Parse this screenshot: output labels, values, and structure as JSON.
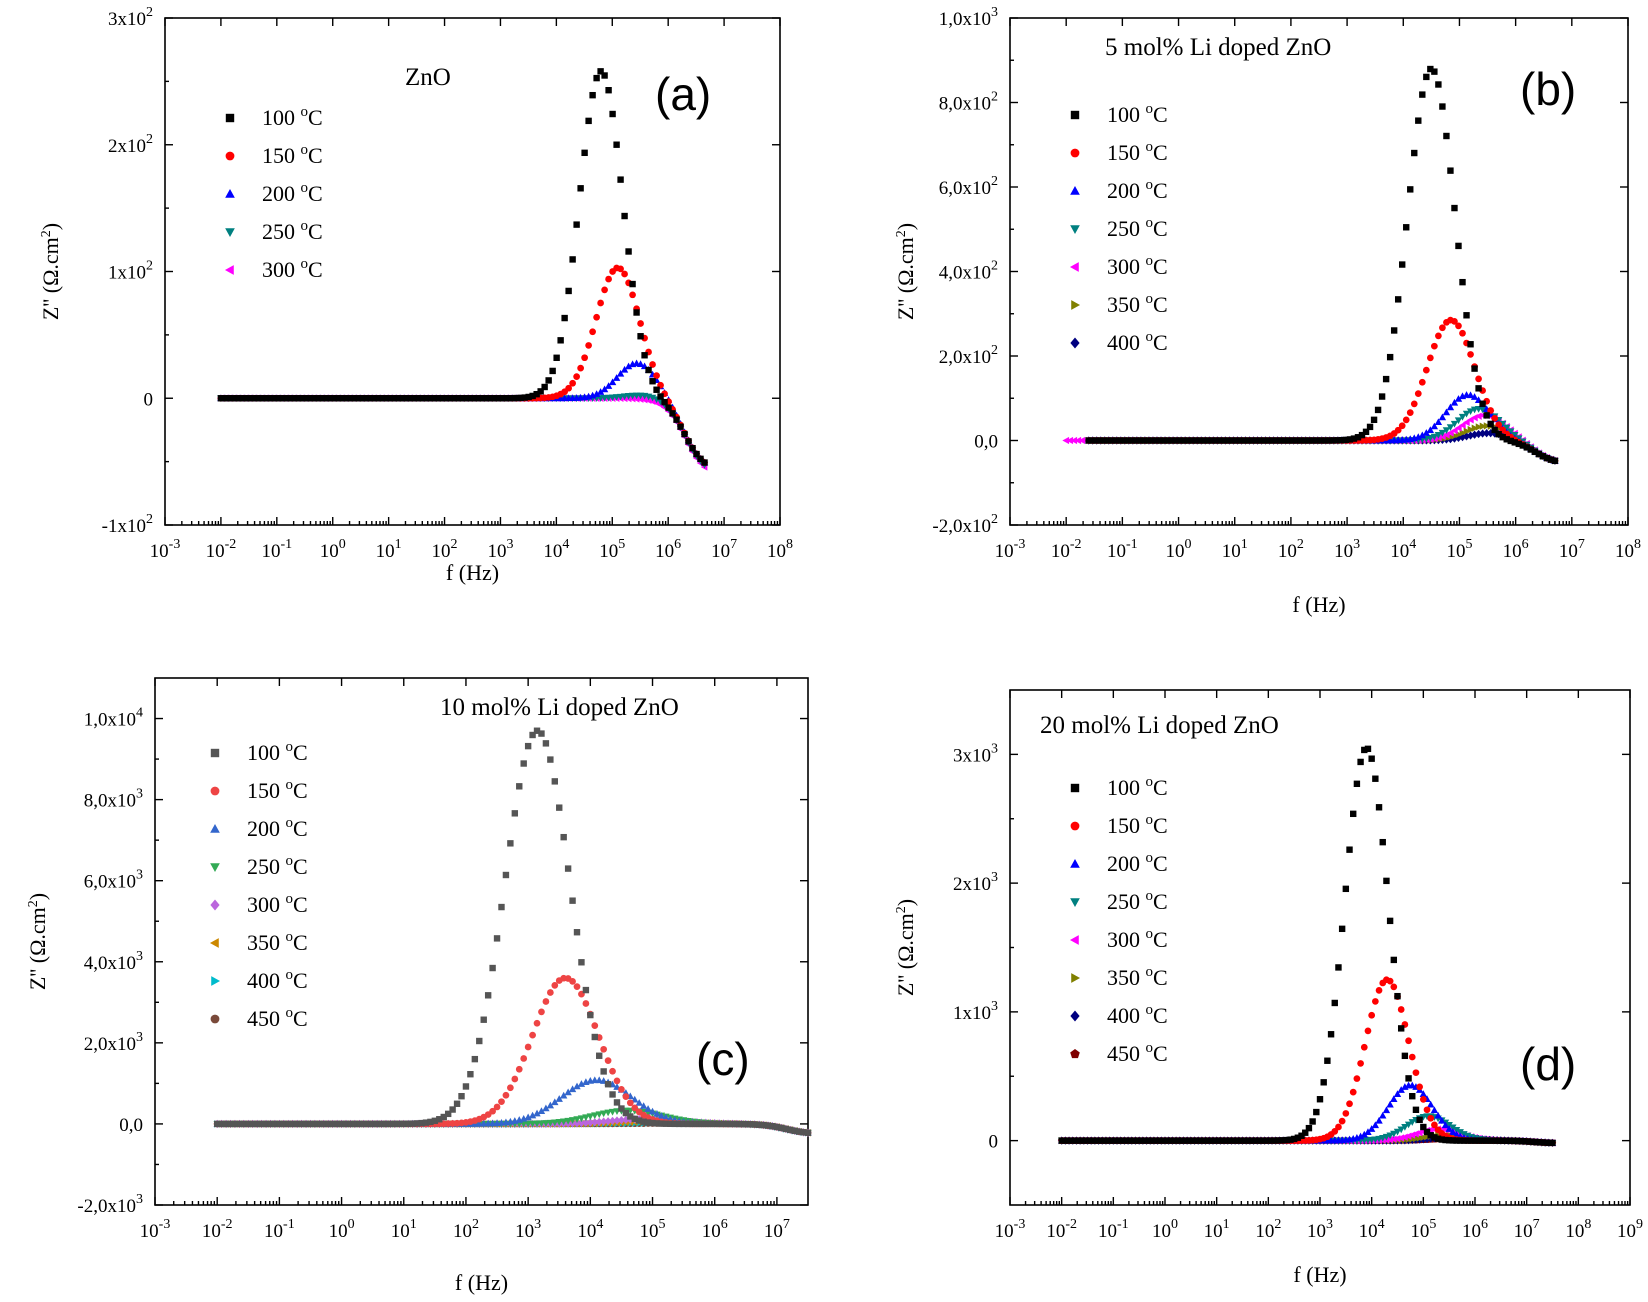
{
  "figure_panels": [
    "(a)",
    "(b)",
    "(c)",
    "(d)"
  ],
  "chart_data": [
    {
      "type": "scatter",
      "panel_label": "(a)",
      "annotation": "ZnO",
      "xscale": "log",
      "xlim": [
        -3,
        8
      ],
      "ylim": [
        -100,
        300
      ],
      "xlabel": "f (Hz)",
      "ylabel": "Z'' (Ω.cm²)",
      "xticks": [
        -3,
        -2,
        -1,
        0,
        1,
        2,
        3,
        4,
        5,
        6,
        7,
        8
      ],
      "xtick_labels": [
        "10-3",
        "10-2",
        "10-1",
        "100",
        "101",
        "102",
        "103",
        "104",
        "105",
        "106",
        "107",
        "108"
      ],
      "yticks": [
        -100,
        0,
        100,
        200,
        300
      ],
      "ytick_labels": [
        "-1x102",
        "0",
        "1x102",
        "2x102",
        "3x102"
      ],
      "legend_position": "upper-left",
      "series": [
        {
          "name": "100 °C",
          "color": "#000000",
          "marker": "square",
          "peak_logf": 4.8,
          "peak": 258,
          "width": 0.55,
          "x_start": -2,
          "x_end": 6.65,
          "end_value": -58
        },
        {
          "name": "150 °C",
          "color": "#ff0000",
          "marker": "circle",
          "peak_logf": 5.1,
          "peak": 103,
          "width": 0.55,
          "x_start": -2,
          "x_end": 6.65,
          "end_value": -58
        },
        {
          "name": "200 °C",
          "color": "#0000ff",
          "marker": "triangle-up",
          "peak_logf": 5.45,
          "peak": 28,
          "width": 0.5,
          "x_start": -2,
          "x_end": 6.65,
          "end_value": -58
        },
        {
          "name": "250 °C",
          "color": "#008080",
          "marker": "triangle-down",
          "peak_logf": 5.6,
          "peak": 3,
          "width": 0.5,
          "x_start": -2,
          "x_end": 6.65,
          "end_value": -60
        },
        {
          "name": "300 °C",
          "color": "#ff00ff",
          "marker": "triangle-left",
          "peak_logf": 5.7,
          "peak": 0,
          "width": 0.5,
          "x_start": -2,
          "x_end": 6.65,
          "end_value": -62
        }
      ]
    },
    {
      "type": "scatter",
      "panel_label": "(b)",
      "annotation": "5 mol% Li doped ZnO",
      "xscale": "log",
      "xlim": [
        -3,
        8
      ],
      "ylim": [
        -200,
        1000
      ],
      "xlabel": "f (Hz)",
      "ylabel": "Z'' (Ω.cm²)",
      "xticks": [
        -3,
        -2,
        -1,
        0,
        1,
        2,
        3,
        4,
        5,
        6,
        7,
        8
      ],
      "xtick_labels": [
        "10-3",
        "10-2",
        "10-1",
        "100",
        "101",
        "102",
        "103",
        "104",
        "105",
        "106",
        "107",
        "108"
      ],
      "yticks": [
        -200,
        0,
        200,
        400,
        600,
        800,
        1000
      ],
      "ytick_labels": [
        "-2,0x102",
        "0,0",
        "2,0x102",
        "4,0x102",
        "6,0x102",
        "8,0x102",
        "1,0x103"
      ],
      "legend_position": "upper-left",
      "series": [
        {
          "name": "100 °C",
          "color": "#000000",
          "marker": "square",
          "peak_logf": 4.5,
          "peak": 880,
          "width": 0.6,
          "x_start": -1.6,
          "x_end": 6.7,
          "end_value": -55
        },
        {
          "name": "150 °C",
          "color": "#ff0000",
          "marker": "circle",
          "peak_logf": 4.85,
          "peak": 285,
          "width": 0.6,
          "x_start": -1.6,
          "x_end": 6.7,
          "end_value": -55
        },
        {
          "name": "200 °C",
          "color": "#0000ff",
          "marker": "triangle-up",
          "peak_logf": 5.15,
          "peak": 108,
          "width": 0.55,
          "x_start": -1.6,
          "x_end": 6.7,
          "end_value": -55
        },
        {
          "name": "250 °C",
          "color": "#008080",
          "marker": "triangle-down",
          "peak_logf": 5.35,
          "peak": 75,
          "width": 0.55,
          "x_start": -1.6,
          "x_end": 6.7,
          "end_value": -55
        },
        {
          "name": "300 °C",
          "color": "#ff00ff",
          "marker": "triangle-left",
          "peak_logf": 5.45,
          "peak": 60,
          "width": 0.55,
          "x_start": -2.0,
          "x_end": 6.7,
          "end_value": -55
        },
        {
          "name": "350 °C",
          "color": "#808000",
          "marker": "triangle-right",
          "peak_logf": 5.5,
          "peak": 35,
          "width": 0.55,
          "x_start": -1.6,
          "x_end": 6.7,
          "end_value": -55
        },
        {
          "name": "400 °C",
          "color": "#000080",
          "marker": "diamond",
          "peak_logf": 5.55,
          "peak": 18,
          "width": 0.55,
          "x_start": -1.6,
          "x_end": 6.7,
          "end_value": -55
        }
      ]
    },
    {
      "type": "scatter",
      "panel_label": "(c)",
      "annotation": "10 mol% Li doped ZnO",
      "xscale": "log",
      "xlim": [
        -3,
        7.5
      ],
      "ylim": [
        -2000,
        11000
      ],
      "xlabel": "f (Hz)",
      "ylabel": "Z'' (Ω.cm²)",
      "xticks": [
        -3,
        -2,
        -1,
        0,
        1,
        2,
        3,
        4,
        5,
        6,
        7
      ],
      "xtick_labels": [
        "10-3",
        "10-2",
        "10-1",
        "100",
        "101",
        "102",
        "103",
        "104",
        "105",
        "106",
        "107"
      ],
      "yticks": [
        -2000,
        0,
        2000,
        4000,
        6000,
        8000,
        10000
      ],
      "ytick_labels": [
        "-2,0x103",
        "0,0",
        "2,0x103",
        "4,0x103",
        "6,0x103",
        "8,0x103",
        "1,0x104"
      ],
      "legend_position": "upper-left",
      "series": [
        {
          "name": "100 °C",
          "color": "#555555",
          "marker": "square",
          "peak_logf": 3.15,
          "peak": 9700,
          "width": 0.75,
          "x_start": -2,
          "x_end": 7.5,
          "end_value": -250
        },
        {
          "name": "150 °C",
          "color": "#ee4444",
          "marker": "circle",
          "peak_logf": 3.6,
          "peak": 3600,
          "width": 0.75,
          "x_start": -2,
          "x_end": 7.5,
          "end_value": -250
        },
        {
          "name": "200 °C",
          "color": "#3366cc",
          "marker": "triangle-up",
          "peak_logf": 4.1,
          "peak": 1080,
          "width": 0.8,
          "x_start": -2,
          "x_end": 7.5,
          "end_value": -250
        },
        {
          "name": "250 °C",
          "color": "#33aa55",
          "marker": "triangle-down",
          "peak_logf": 4.6,
          "peak": 330,
          "width": 0.8,
          "x_start": -2,
          "x_end": 7.5,
          "end_value": -250
        },
        {
          "name": "300 °C",
          "color": "#bb66dd",
          "marker": "diamond",
          "peak_logf": 4.9,
          "peak": 120,
          "width": 0.8,
          "x_start": -2,
          "x_end": 7.5,
          "end_value": -250
        },
        {
          "name": "350 °C",
          "color": "#cc8800",
          "marker": "triangle-left",
          "peak_logf": 5.1,
          "peak": 60,
          "width": 0.8,
          "x_start": -2,
          "x_end": 7.5,
          "end_value": -250
        },
        {
          "name": "400 °C",
          "color": "#00bbcc",
          "marker": "triangle-right",
          "peak_logf": 5.3,
          "peak": 30,
          "width": 0.8,
          "x_start": -2,
          "x_end": 7.5,
          "end_value": -250
        },
        {
          "name": "450 °C",
          "color": "#7a4a3a",
          "marker": "circle",
          "peak_logf": 5.5,
          "peak": 15,
          "width": 0.8,
          "x_start": -2,
          "x_end": 7.5,
          "end_value": -250
        }
      ]
    },
    {
      "type": "scatter",
      "panel_label": "(d)",
      "annotation": "20 mol% Li doped ZnO",
      "xscale": "log",
      "xlim": [
        -3,
        9
      ],
      "ylim": [
        -500,
        3500
      ],
      "xlabel": "f (Hz)",
      "ylabel": "Z'' (Ω.cm²)",
      "xticks": [
        -3,
        -2,
        -1,
        0,
        1,
        2,
        3,
        4,
        5,
        6,
        7,
        8,
        9
      ],
      "xtick_labels": [
        "10-3",
        "10-2",
        "10-1",
        "100",
        "101",
        "102",
        "103",
        "104",
        "105",
        "106",
        "107",
        "108",
        "109"
      ],
      "yticks": [
        0,
        1000,
        2000,
        3000
      ],
      "ytick_labels": [
        "0",
        "1x103",
        "2x103",
        "3x103"
      ],
      "legend_position": "upper-left",
      "series": [
        {
          "name": "100 °C",
          "color": "#000000",
          "marker": "square",
          "peak_logf": 3.9,
          "peak": 3050,
          "width": 0.6,
          "x_start": -2,
          "x_end": 7.5,
          "end_value": -20
        },
        {
          "name": "150 °C",
          "color": "#ff0000",
          "marker": "circle",
          "peak_logf": 4.3,
          "peak": 1250,
          "width": 0.6,
          "x_start": -2,
          "x_end": 7.5,
          "end_value": -20
        },
        {
          "name": "200 °C",
          "color": "#0000ff",
          "marker": "triangle-up",
          "peak_logf": 4.75,
          "peak": 430,
          "width": 0.6,
          "x_start": -2,
          "x_end": 7.5,
          "end_value": -20
        },
        {
          "name": "250 °C",
          "color": "#008080",
          "marker": "triangle-down",
          "peak_logf": 5.1,
          "peak": 190,
          "width": 0.6,
          "x_start": -2,
          "x_end": 7.5,
          "end_value": -20
        },
        {
          "name": "300 °C",
          "color": "#ff00ff",
          "marker": "triangle-left",
          "peak_logf": 5.3,
          "peak": 90,
          "width": 0.6,
          "x_start": -2,
          "x_end": 7.5,
          "end_value": -20
        },
        {
          "name": "350 °C",
          "color": "#808000",
          "marker": "triangle-right",
          "peak_logf": 5.45,
          "peak": 45,
          "width": 0.6,
          "x_start": -2,
          "x_end": 7.5,
          "end_value": -20
        },
        {
          "name": "400 °C",
          "color": "#000080",
          "marker": "diamond",
          "peak_logf": 5.55,
          "peak": 25,
          "width": 0.6,
          "x_start": -2,
          "x_end": 7.5,
          "end_value": -20
        },
        {
          "name": "450 °C",
          "color": "#800000",
          "marker": "pentagon",
          "peak_logf": 5.6,
          "peak": 15,
          "width": 0.6,
          "x_start": -2,
          "x_end": 7.5,
          "end_value": -20
        }
      ]
    }
  ]
}
